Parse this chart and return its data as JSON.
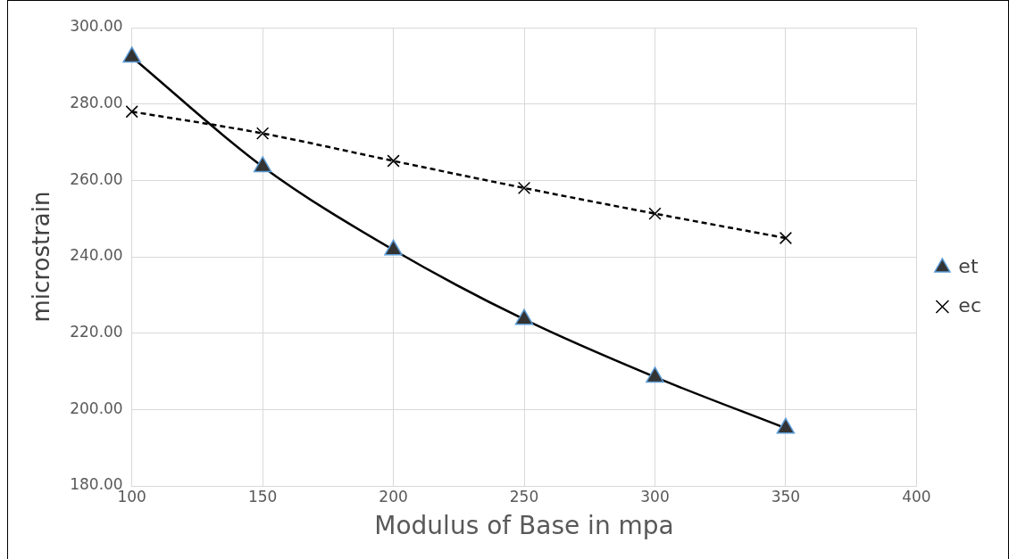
{
  "chart_data": {
    "type": "line",
    "xlabel": "Modulus of Base in mpa",
    "ylabel": "microstrain",
    "x": [
      100,
      150,
      200,
      250,
      300,
      350
    ],
    "series": [
      {
        "name": "et",
        "color": "#000000",
        "values": [
          292.3,
          263.6,
          241.8,
          223.6,
          208.5,
          195.1
        ],
        "marker": "triangle",
        "line_style": "solid"
      },
      {
        "name": "ec",
        "color": "#000000",
        "values": [
          278.0,
          272.3,
          265.1,
          258.0,
          251.3,
          244.9
        ],
        "marker": "cross",
        "line_style": "dashed"
      }
    ],
    "xlim": [
      100,
      400
    ],
    "xticks": [
      100,
      150,
      200,
      250,
      300,
      350,
      400
    ],
    "ylim": [
      180,
      300
    ],
    "yticks": [
      {
        "value": 180,
        "label": "180.00"
      },
      {
        "value": 200,
        "label": "200.00"
      },
      {
        "value": 220,
        "label": "220.00"
      },
      {
        "value": 240,
        "label": "240.00"
      },
      {
        "value": 260,
        "label": "260.00"
      },
      {
        "value": 280,
        "label": "280.00"
      },
      {
        "value": 300,
        "label": "300.00"
      }
    ],
    "grid": true,
    "legend": "right"
  }
}
